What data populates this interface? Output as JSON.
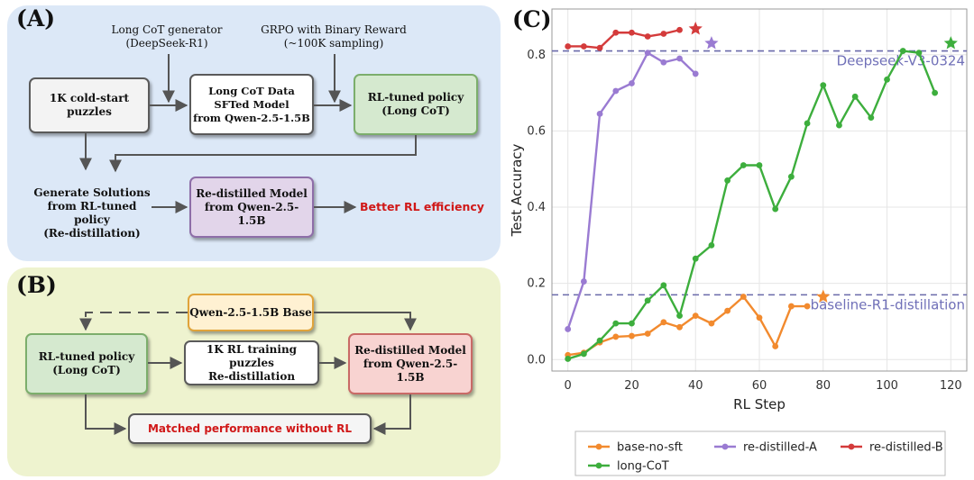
{
  "panel_a": {
    "label": "(A)",
    "generator_label": "Long CoT generator\n(DeepSeek-R1)",
    "grpo_label": "GRPO with Binary Reward\n(~100K sampling)",
    "cold_start": "1K cold-start puzzles",
    "sft_model": "Long CoT Data\nSFTed Model\nfrom Qwen-2.5-1.5B",
    "rl_policy": "RL-tuned policy\n(Long CoT)",
    "generate_solutions": "Generate Solutions\nfrom RL-tuned policy\n(Re-distillation)",
    "redistilled": "Re-distilled Model\nfrom Qwen-2.5-1.5B",
    "result": "Better RL efficiency"
  },
  "panel_b": {
    "label": "(B)",
    "base": "Qwen-2.5-1.5B Base",
    "rl_policy": "RL-tuned policy\n(Long CoT)",
    "training": "1K RL training puzzles\nRe-distillation",
    "redistilled": "Re-distilled Model\nfrom Qwen-2.5-1.5B",
    "result": "Matched performance without RL"
  },
  "colors": {
    "blue_panel": "#dce8f7",
    "yellow_panel": "#eef3cf",
    "green_box": "#d5e9cf",
    "purple_box": "#e2d5ea",
    "orange_box": "#fff1d2",
    "red_box": "#f8d3d1",
    "red_text": "#d01818"
  },
  "chart_data": {
    "label": "(C)",
    "type": "line",
    "xlabel": "RL Step",
    "ylabel": "Test Accuracy",
    "xlim": [
      -5,
      125
    ],
    "ylim": [
      -0.03,
      0.92
    ],
    "xticks": [
      0,
      20,
      40,
      60,
      80,
      100,
      120
    ],
    "yticks": [
      0.0,
      0.2,
      0.4,
      0.6,
      0.8
    ],
    "ytick_labels": [
      "0.0",
      "0.2",
      "0.4",
      "0.6",
      "0.8"
    ],
    "grid": true,
    "legend_position": "bottom",
    "reference_lines": [
      {
        "name": "Deepseek-V3-0324",
        "y": 0.81
      },
      {
        "name": "baseline-R1-distillation",
        "y": 0.17
      }
    ],
    "series": [
      {
        "name": "base-no-sft",
        "color": "#f28a2e",
        "x": [
          0,
          5,
          10,
          15,
          20,
          25,
          30,
          35,
          40,
          45,
          50,
          55,
          60,
          65,
          70,
          75
        ],
        "y": [
          0.012,
          0.018,
          0.045,
          0.06,
          0.062,
          0.068,
          0.098,
          0.085,
          0.115,
          0.095,
          0.128,
          0.165,
          0.11,
          0.035,
          0.14,
          0.14
        ],
        "end_star": {
          "x": 80,
          "y": 0.165
        }
      },
      {
        "name": "re-distilled-A",
        "color": "#9a7bd2",
        "x": [
          0,
          5,
          10,
          15,
          20,
          25,
          30,
          35,
          40
        ],
        "y": [
          0.08,
          0.205,
          0.645,
          0.705,
          0.725,
          0.805,
          0.78,
          0.79,
          0.75
        ],
        "end_star": {
          "x": 45,
          "y": 0.83
        }
      },
      {
        "name": "re-distilled-B",
        "color": "#d43b3b",
        "x": [
          0,
          5,
          10,
          15,
          20,
          25,
          30,
          35
        ],
        "y": [
          0.822,
          0.822,
          0.818,
          0.858,
          0.858,
          0.848,
          0.855,
          0.865
        ],
        "end_star": {
          "x": 40,
          "y": 0.868
        }
      },
      {
        "name": "long-CoT",
        "color": "#3dae3d",
        "x": [
          0,
          5,
          10,
          15,
          20,
          25,
          30,
          35,
          40,
          45,
          50,
          55,
          60,
          65,
          70,
          75,
          80,
          85,
          90,
          95,
          100,
          105,
          110,
          115
        ],
        "y": [
          0.002,
          0.015,
          0.05,
          0.095,
          0.095,
          0.155,
          0.195,
          0.115,
          0.265,
          0.3,
          0.47,
          0.51,
          0.51,
          0.395,
          0.48,
          0.62,
          0.72,
          0.615,
          0.69,
          0.635,
          0.735,
          0.81,
          0.805,
          0.7
        ],
        "end_star": {
          "x": 120,
          "y": 0.83
        }
      }
    ]
  }
}
